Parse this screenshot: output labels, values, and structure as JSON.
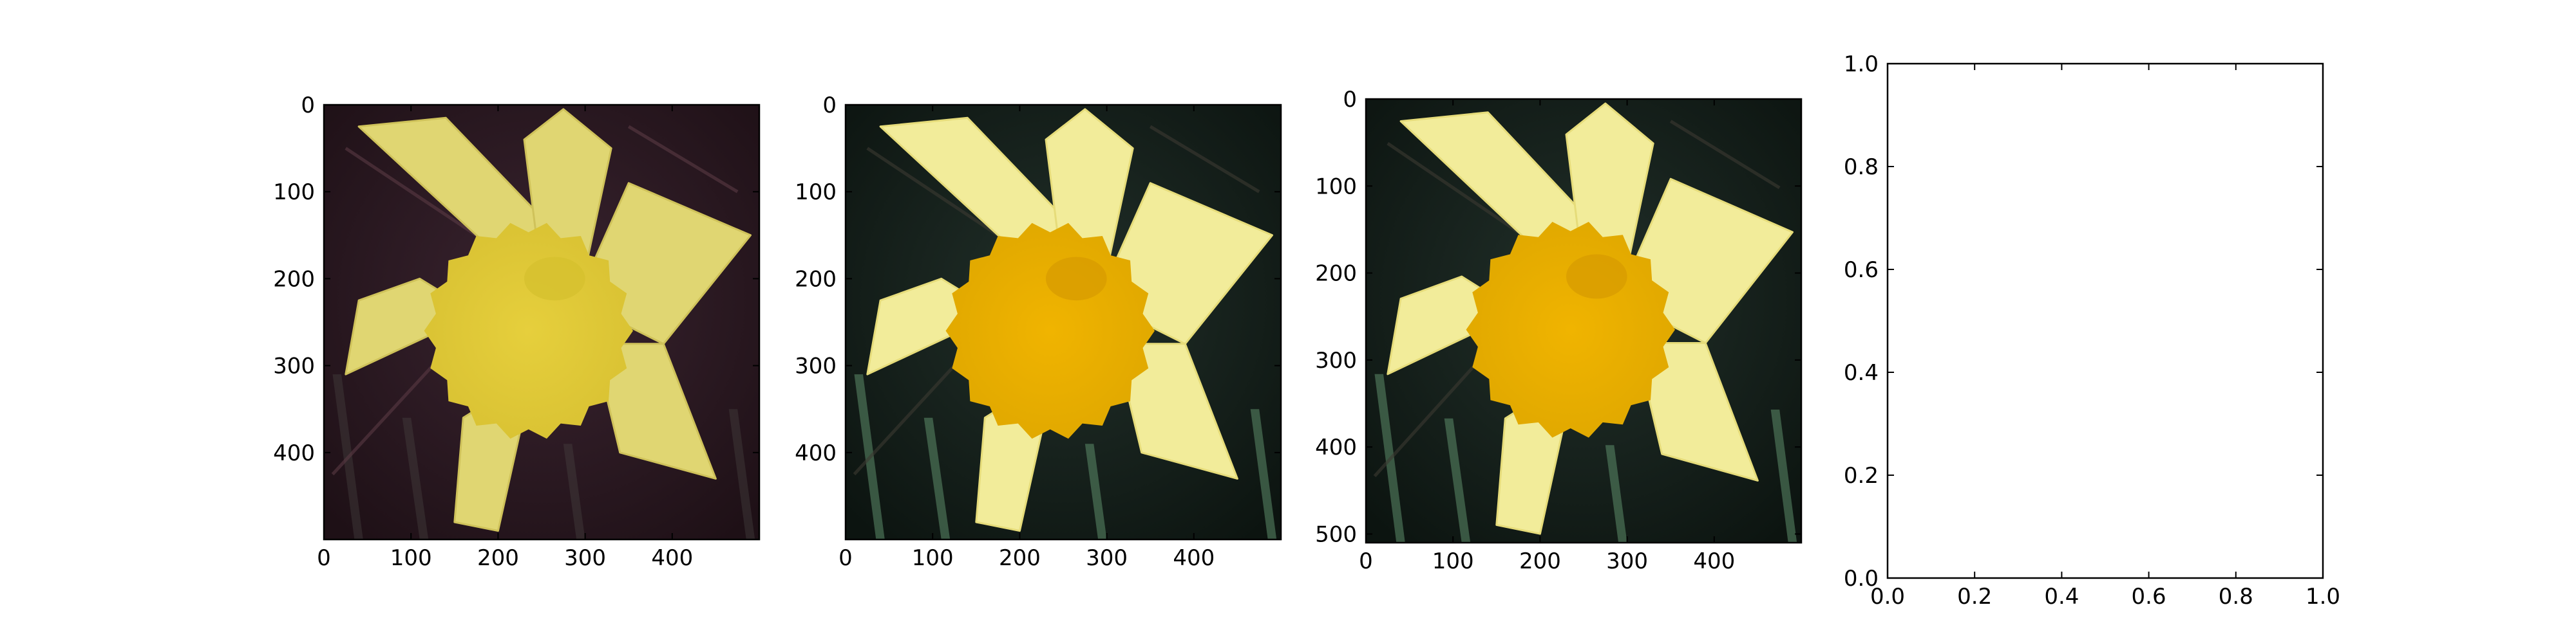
{
  "colors": {
    "background": "#ffffff",
    "axes_edge": "#000000",
    "petal_light": "#f2ec9a",
    "petal_mid": "#e8de6f",
    "corona": "#e8bb12",
    "dark_bg_1": "#2b1a22",
    "dark_bg_2": "#16201a",
    "dark_bg_3": "#121816",
    "stem": "#5d8c6a"
  },
  "chart_data": [
    {
      "type": "image",
      "image": "daffodil-photo",
      "tint": "muted-magenta",
      "xlim": [
        0,
        500
      ],
      "ylim": [
        500,
        0
      ],
      "x_ticks": [
        0,
        100,
        200,
        300,
        400
      ],
      "y_ticks": [
        0,
        100,
        200,
        300,
        400
      ],
      "x_tick_labels": [
        "0",
        "100",
        "200",
        "300",
        "400"
      ],
      "y_tick_labels": [
        "0",
        "100",
        "200",
        "300",
        "400"
      ]
    },
    {
      "type": "image",
      "image": "daffodil-photo",
      "tint": "natural",
      "xlim": [
        0,
        500
      ],
      "ylim": [
        500,
        0
      ],
      "x_ticks": [
        0,
        100,
        200,
        300,
        400
      ],
      "y_ticks": [
        0,
        100,
        200,
        300,
        400
      ],
      "x_tick_labels": [
        "0",
        "100",
        "200",
        "300",
        "400"
      ],
      "y_tick_labels": [
        "0",
        "100",
        "200",
        "300",
        "400"
      ]
    },
    {
      "type": "image",
      "image": "daffodil-photo",
      "tint": "natural",
      "xlim": [
        0,
        500
      ],
      "ylim": [
        510,
        0
      ],
      "x_ticks": [
        0,
        100,
        200,
        300,
        400
      ],
      "y_ticks": [
        0,
        100,
        200,
        300,
        400,
        500
      ],
      "x_tick_labels": [
        "0",
        "100",
        "200",
        "300",
        "400"
      ],
      "y_tick_labels": [
        "0",
        "100",
        "200",
        "300",
        "400",
        "500"
      ]
    },
    {
      "type": "empty",
      "xlim": [
        0,
        1
      ],
      "ylim": [
        0,
        1
      ],
      "x_ticks": [
        0,
        0.2,
        0.4,
        0.6,
        0.8,
        1
      ],
      "y_ticks": [
        0,
        0.2,
        0.4,
        0.6,
        0.8,
        1
      ],
      "x_tick_labels": [
        "0.0",
        "0.2",
        "0.4",
        "0.6",
        "0.8",
        "1.0"
      ],
      "y_tick_labels": [
        "0.0",
        "0.2",
        "0.4",
        "0.6",
        "0.8",
        "1.0"
      ]
    }
  ]
}
